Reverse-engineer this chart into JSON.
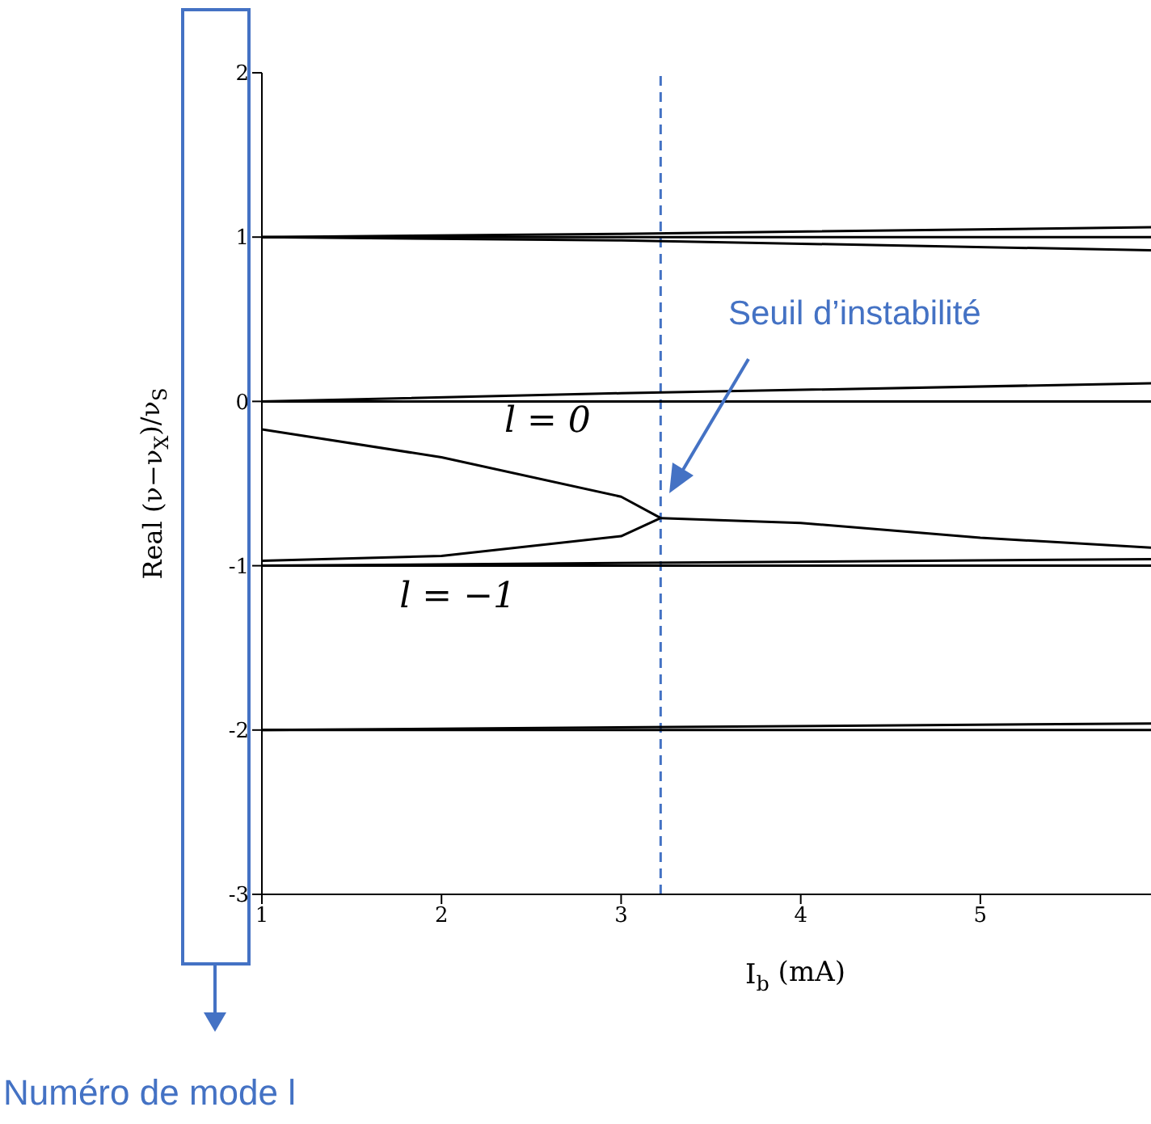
{
  "chart_data": {
    "type": "line",
    "xlabel": "I$_{b}$ (mA)",
    "ylabel": "Real (ν−ν$_{X}$)/ν$_{S}$",
    "xlim": [
      1,
      5.95
    ],
    "xticks": [
      1,
      2,
      3,
      4,
      5
    ],
    "ylim": [
      -3,
      2
    ],
    "yticks": [
      -3,
      -2,
      -1,
      0,
      1,
      2
    ],
    "marker": "none",
    "line_style": "solid",
    "series": [
      {
        "color": "#000000",
        "x": [
          1,
          5.95
        ],
        "values": [
          1,
          1
        ]
      },
      {
        "color": "#000000",
        "x": [
          1,
          3,
          5.95
        ],
        "values": [
          1,
          1.02,
          1.06
        ]
      },
      {
        "color": "#000000",
        "x": [
          1,
          3,
          5.95
        ],
        "values": [
          1,
          0.98,
          0.92
        ]
      },
      {
        "color": "#000000",
        "x": [
          1,
          5.95
        ],
        "values": [
          0,
          0
        ]
      },
      {
        "color": "#000000",
        "x": [
          1,
          3,
          5.95
        ],
        "values": [
          0,
          0.05,
          0.11
        ]
      },
      {
        "color": "#000000",
        "x": [
          1,
          2,
          3,
          3.22
        ],
        "values": [
          -0.17,
          -0.34,
          -0.58,
          -0.71
        ]
      },
      {
        "color": "#000000",
        "x": [
          1,
          2,
          3,
          3.22
        ],
        "values": [
          -0.97,
          -0.94,
          -0.82,
          -0.71
        ]
      },
      {
        "color": "#000000",
        "x": [
          3.22,
          4,
          5,
          5.95
        ],
        "values": [
          -0.71,
          -0.74,
          -0.83,
          -0.89
        ]
      },
      {
        "color": "#000000",
        "x": [
          1,
          5.95
        ],
        "values": [
          -1,
          -1
        ]
      },
      {
        "color": "#000000",
        "x": [
          1,
          5.95
        ],
        "values": [
          -1,
          -0.96
        ]
      },
      {
        "color": "#000000",
        "x": [
          1,
          5.95
        ],
        "values": [
          -2,
          -2
        ]
      },
      {
        "color": "#000000",
        "x": [
          1,
          5.95
        ],
        "values": [
          -2,
          -1.96
        ]
      }
    ],
    "ref_lines": [
      {
        "axis": "x",
        "value": 3.22,
        "color": "#4472c4",
        "line_style": "dashed"
      }
    ],
    "annotations": [
      {
        "text": "l = 0",
        "x": 2.5,
        "y": -0.46
      },
      {
        "text": "l = −1",
        "x": 2,
        "y": -0.94
      },
      "Seuil d’instabilité",
      "Numéro de mode l"
    ]
  }
}
